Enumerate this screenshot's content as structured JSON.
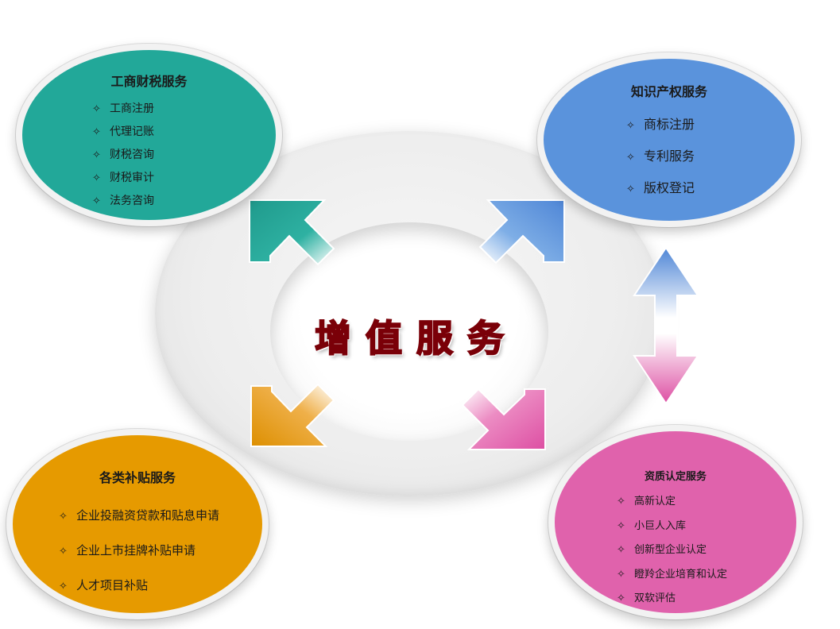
{
  "center": {
    "title": "增值服务"
  },
  "groups": {
    "tl": {
      "title": "工商财税服务",
      "items": [
        "工商注册",
        "代理记账",
        "财税咨询",
        "财税审计",
        "法务咨询"
      ],
      "color": "#22a899"
    },
    "tr": {
      "title": "知识产权服务",
      "items": [
        "商标注册",
        "专利服务",
        "版权登记"
      ],
      "color": "#5a93dc"
    },
    "bl": {
      "title": "各类补贴服务",
      "items": [
        "企业投融资贷款和贴息申请",
        "企业上市挂牌补贴申请",
        "人才项目补贴"
      ],
      "color": "#e69a00"
    },
    "br": {
      "title": "资质认定服务",
      "items": [
        "高新认定",
        "小巨人入库",
        "创新型企业认定",
        "瞪羚企业培育和认定",
        "双软评估"
      ],
      "color": "#e062ac"
    }
  },
  "bullet": "✧",
  "colors": {
    "teal": "#22a899",
    "blue": "#5a93dc",
    "orange": "#e69a00",
    "pink": "#e062ac",
    "center_text": "#c10e16"
  }
}
